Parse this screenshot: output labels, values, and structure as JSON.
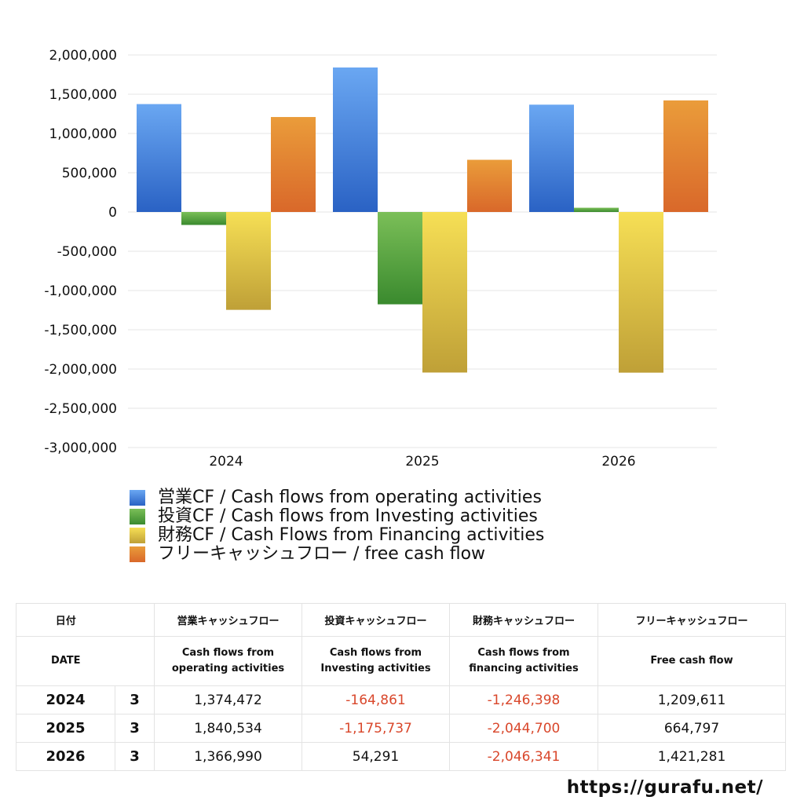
{
  "chart_data": {
    "type": "bar",
    "categories": [
      "2024",
      "2025",
      "2026"
    ],
    "series": [
      {
        "name": "営業CF / Cash flows from operating activities",
        "values": [
          1374472,
          1840534,
          1366990
        ],
        "color_top": "#6aa7f2",
        "color_bottom": "#2a62c4"
      },
      {
        "name": "投資CF / Cash flows from Investing activities",
        "values": [
          -164861,
          -1175737,
          54291
        ],
        "color_top": "#7bbf58",
        "color_bottom": "#3a8a2e"
      },
      {
        "name": "財務CF / Cash Flows from Financing activities",
        "values": [
          -1246398,
          -2044700,
          -2046341
        ],
        "color_top": "#f6df55",
        "color_bottom": "#bfa037"
      },
      {
        "name": "フリーキャッシュフロー / free cash flow",
        "values": [
          1209611,
          664797,
          1421281
        ],
        "color_top": "#ea9c3a",
        "color_bottom": "#d9682a"
      }
    ],
    "ylim": [
      -3000000,
      2000000
    ],
    "yticks": [
      2000000,
      1500000,
      1000000,
      500000,
      0,
      -500000,
      -1000000,
      -1500000,
      -2000000,
      -2500000,
      -3000000
    ],
    "ytick_labels": [
      "2,000,000",
      "1,500,000",
      "1,000,000",
      "500,000",
      "0",
      "-500,000",
      "-1,000,000",
      "-1,500,000",
      "-2,000,000",
      "-2,500,000",
      "-3,000,000"
    ],
    "grid": true,
    "legend_position": "bottom-left"
  },
  "table": {
    "header_ja": {
      "date": "日付",
      "operating": "営業キャッシュフロー",
      "investing": "投資キャッシュフロー",
      "financing": "財務キャッシュフロー",
      "free": "フリーキャッシュフロー"
    },
    "header_en": {
      "date": "DATE",
      "operating_1": "Cash flows from",
      "operating_2": "operating activities",
      "investing_1": "Cash flows from",
      "investing_2": "Investing activities",
      "financing_1": "Cash flows from",
      "financing_2": "financing activities",
      "free": "Free cash flow"
    },
    "rows": [
      {
        "year": "2024",
        "month": "3",
        "operating": "1,374,472",
        "investing": "-164,861",
        "financing": "-1,246,398",
        "free": "1,209,611"
      },
      {
        "year": "2025",
        "month": "3",
        "operating": "1,840,534",
        "investing": "-1,175,737",
        "financing": "-2,044,700",
        "free": "664,797"
      },
      {
        "year": "2026",
        "month": "3",
        "operating": "1,366,990",
        "investing": "54,291",
        "financing": "-2,046,341",
        "free": "1,421,281"
      }
    ]
  },
  "footer": {
    "url": "https://gurafu.net/"
  }
}
